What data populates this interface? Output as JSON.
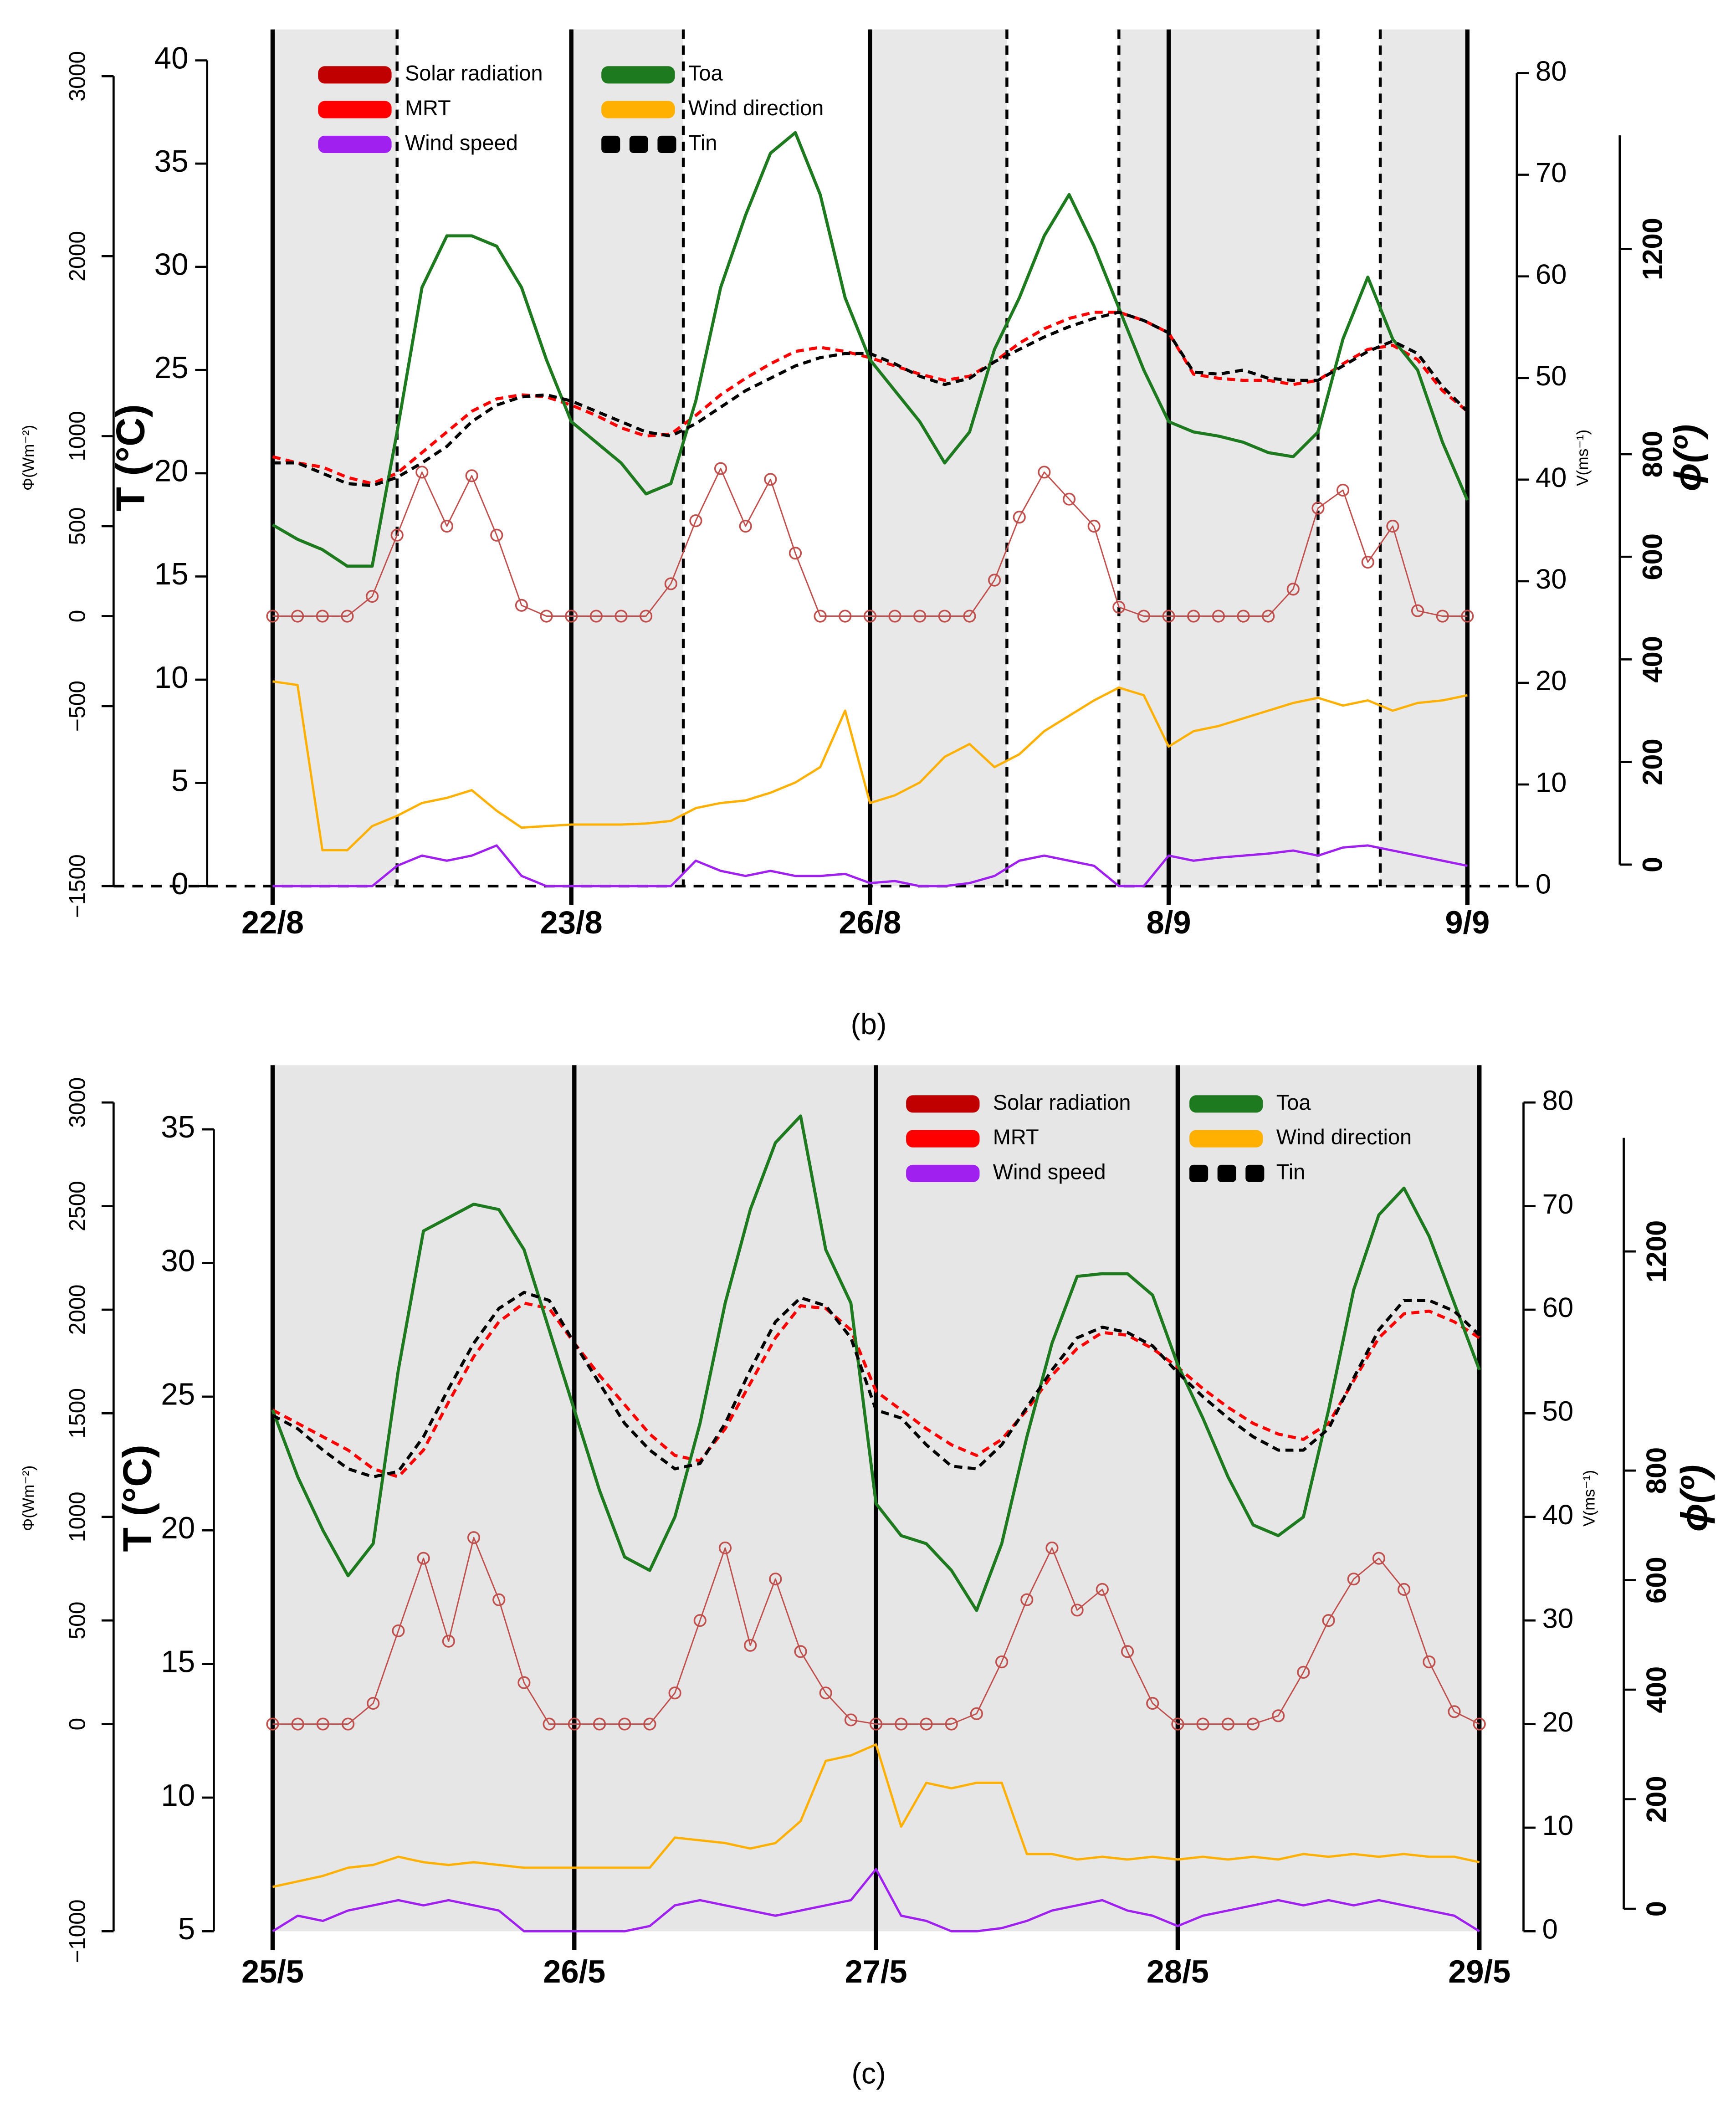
{
  "chart_data": [
    {
      "type": "line",
      "caption": "(b)",
      "x": [
        0,
        2,
        4,
        6,
        8,
        10,
        12,
        14,
        16,
        18,
        20,
        22,
        24,
        26,
        28,
        30,
        32,
        34,
        36,
        38,
        40,
        42,
        44,
        46,
        48,
        50,
        52,
        54,
        56,
        58,
        60,
        62,
        64,
        66,
        68,
        70,
        72,
        74,
        76,
        78,
        80,
        82,
        84,
        86,
        88,
        90,
        92,
        94,
        96
      ],
      "xlim": [
        0,
        96
      ],
      "xticks": [
        {
          "value": 0,
          "label": "22/8"
        },
        {
          "value": 24,
          "label": "23/8"
        },
        {
          "value": 48,
          "label": "26/8"
        },
        {
          "value": 72,
          "label": "8/9"
        },
        {
          "value": 96,
          "label": "9/9"
        }
      ],
      "ylabel": "T (°C)",
      "ylim": [
        0,
        41.5
      ],
      "yticks": [
        0,
        5,
        10,
        15,
        20,
        25,
        30,
        35,
        40
      ],
      "y2label": "V(ms⁻¹)",
      "y2lim": [
        0,
        84.3
      ],
      "y2ticks": [
        0,
        10,
        20,
        30,
        40,
        50,
        60,
        70,
        80
      ],
      "y3label": "Φ(Wm⁻²)",
      "y3lim": [
        -1500,
        3260
      ],
      "y3ticks": [
        {
          "value": -1500,
          "label": "−1500"
        },
        {
          "value": -500,
          "label": "−500"
        },
        0,
        500,
        1000,
        2000,
        3000
      ],
      "y4label": "ϕ(º)",
      "y4lim": [
        -42,
        1628
      ],
      "y4ticks": [
        0,
        200,
        400,
        600,
        800,
        1200
      ],
      "night_periods": [
        [
          0,
          10
        ],
        [
          24,
          33
        ],
        [
          48,
          59
        ],
        [
          68,
          84
        ],
        [
          89,
          96
        ]
      ],
      "night_color": "#e8e8e8",
      "baseline_dashed": true,
      "legend": "upper left",
      "series": [
        {
          "name": "Solar radiation",
          "color": "#c0504d",
          "legend_color": "#c00000",
          "axis": "y3",
          "marker": "circle",
          "values": [
            0,
            0,
            0,
            0,
            110,
            450,
            800,
            500,
            780,
            450,
            60,
            0,
            0,
            0,
            0,
            0,
            180,
            530,
            820,
            500,
            760,
            350,
            0,
            0,
            0,
            0,
            0,
            0,
            0,
            200,
            550,
            800,
            650,
            500,
            50,
            0,
            0,
            0,
            0,
            0,
            0,
            150,
            600,
            700,
            300,
            500,
            30,
            0,
            0
          ]
        },
        {
          "name": "MRT",
          "color": "#ff0000",
          "axis": "y",
          "linestyle": "dashed",
          "values": [
            20.8,
            20.5,
            20.3,
            19.8,
            19.5,
            20,
            21,
            22,
            23,
            23.6,
            23.8,
            23.7,
            23.3,
            22.8,
            22.2,
            21.8,
            21.9,
            22.8,
            23.8,
            24.6,
            25.3,
            25.9,
            26.1,
            25.9,
            25.6,
            25.2,
            24.8,
            24.5,
            24.7,
            25.4,
            26.3,
            27,
            27.5,
            27.8,
            27.8,
            27.4,
            26.8,
            24.8,
            24.6,
            24.5,
            24.5,
            24.3,
            24.5,
            25.3,
            26,
            26.2,
            25.5,
            24,
            23
          ]
        },
        {
          "name": "Wind speed",
          "color": "#a020f0",
          "axis": "y2",
          "linestyle": "solid",
          "values": [
            0,
            0,
            0,
            0,
            0,
            2,
            3,
            2.5,
            3,
            4,
            1,
            0,
            0,
            0,
            0,
            0,
            0,
            2.5,
            1.5,
            1,
            1.5,
            1,
            1,
            1.2,
            0.3,
            0.5,
            0,
            0,
            0.3,
            1,
            2.5,
            3,
            2.5,
            2,
            0,
            0,
            3,
            2.5,
            2.8,
            3,
            3.2,
            3.5,
            3,
            3.8,
            4,
            3.5,
            3,
            2.5,
            2
          ]
        },
        {
          "name": "Toa",
          "color": "#1e7a1e",
          "axis": "y",
          "linestyle": "solid",
          "values": [
            17.5,
            16.8,
            16.3,
            15.5,
            15.5,
            22,
            29,
            31.5,
            31.5,
            31,
            29,
            25.5,
            22.5,
            21.5,
            20.5,
            19,
            19.5,
            23.5,
            29,
            32.5,
            35.5,
            36.5,
            33.5,
            28.5,
            25.5,
            24,
            22.5,
            20.5,
            22,
            26,
            28.5,
            31.5,
            33.5,
            31,
            28,
            25,
            22.5,
            22,
            21.8,
            21.5,
            21,
            20.8,
            22,
            26.5,
            29.5,
            26.5,
            25,
            21.5,
            18.7
          ]
        },
        {
          "name": "Wind direction",
          "color": "#ffb000",
          "axis": "y4",
          "linestyle": "solid",
          "values": [
            357,
            350,
            28,
            28,
            75,
            95,
            120,
            130,
            145,
            105,
            72,
            75,
            78,
            78,
            78,
            80,
            85,
            110,
            120,
            125,
            140,
            160,
            190,
            300,
            120,
            135,
            160,
            210,
            235,
            190,
            215,
            260,
            290,
            320,
            345,
            330,
            230,
            260,
            270,
            285,
            300,
            315,
            325,
            310,
            320,
            300,
            315,
            320,
            330
          ]
        },
        {
          "name": "Tin",
          "color": "#000000",
          "axis": "y",
          "linestyle": "dashed",
          "values": [
            20.5,
            20.5,
            20,
            19.5,
            19.4,
            19.8,
            20.5,
            21.3,
            22.5,
            23.3,
            23.7,
            23.8,
            23.5,
            23,
            22.5,
            22,
            21.8,
            22.4,
            23.2,
            24,
            24.6,
            25.2,
            25.6,
            25.8,
            25.8,
            25.3,
            24.7,
            24.3,
            24.6,
            25.4,
            26,
            26.6,
            27.1,
            27.5,
            27.8,
            27.4,
            26.8,
            24.9,
            24.8,
            25,
            24.6,
            24.5,
            24.5,
            25.2,
            25.9,
            26.4,
            25.8,
            24.2,
            23
          ]
        }
      ]
    },
    {
      "type": "line",
      "caption": "(c)",
      "x": [
        0,
        2,
        4,
        6,
        8,
        10,
        12,
        14,
        16,
        18,
        20,
        22,
        24,
        26,
        28,
        30,
        32,
        34,
        36,
        38,
        40,
        42,
        44,
        46,
        48,
        50,
        52,
        54,
        56,
        58,
        60,
        62,
        64,
        66,
        68,
        70,
        72,
        74,
        76,
        78,
        80,
        82,
        84,
        86,
        88,
        90,
        92,
        94,
        96
      ],
      "xlim": [
        0,
        96
      ],
      "xticks": [
        {
          "value": 0,
          "label": "25/5"
        },
        {
          "value": 24,
          "label": "26/5"
        },
        {
          "value": 48,
          "label": "27/5"
        },
        {
          "value": 72,
          "label": "28/5"
        },
        {
          "value": 96,
          "label": "29/5"
        }
      ],
      "ylabel": "T (°C)",
      "ylim": [
        5,
        37.4
      ],
      "yticks": [
        5,
        10,
        15,
        20,
        25,
        30,
        35
      ],
      "y2label": "V(ms⁻¹)",
      "y2lim": [
        0,
        83.6
      ],
      "y2ticks": [
        0,
        10,
        20,
        30,
        40,
        50,
        60,
        70,
        80
      ],
      "y3label": "Φ(Wm⁻²)",
      "y3lim": [
        -1000,
        3180
      ],
      "y3ticks": [
        {
          "value": -1000,
          "label": "−1000"
        },
        0,
        500,
        1000,
        1500,
        2000,
        2500,
        3000
      ],
      "y4label": "ϕ(º)",
      "y4lim": [
        -41,
        1540
      ],
      "y4ticks": [
        0,
        200,
        400,
        600,
        800,
        1200
      ],
      "night_periods": [
        [
          0,
          96
        ]
      ],
      "night_color": "#e6e6e6",
      "baseline_dashed": false,
      "legend": "upper right",
      "series": [
        {
          "name": "Solar radiation",
          "color": "#c0504d",
          "legend_color": "#c00000",
          "axis": "y3",
          "marker": "circle",
          "values": [
            0,
            0,
            0,
            0,
            100,
            450,
            800,
            400,
            900,
            600,
            200,
            0,
            0,
            0,
            0,
            0,
            150,
            500,
            850,
            380,
            700,
            350,
            150,
            20,
            0,
            0,
            0,
            0,
            50,
            300,
            600,
            850,
            550,
            650,
            350,
            100,
            0,
            0,
            0,
            0,
            40,
            250,
            500,
            700,
            800,
            650,
            300,
            60,
            0
          ]
        },
        {
          "name": "MRT",
          "color": "#ff0000",
          "axis": "y",
          "linestyle": "dashed",
          "values": [
            24.5,
            24,
            23.5,
            23,
            22.3,
            22,
            23,
            24.8,
            26.5,
            27.8,
            28.5,
            28.3,
            27,
            25.8,
            24.7,
            23.6,
            22.8,
            22.6,
            23.8,
            25.5,
            27.2,
            28.4,
            28.3,
            27.5,
            25.2,
            24.5,
            23.8,
            23.2,
            22.8,
            23.4,
            24.5,
            25.8,
            26.8,
            27.4,
            27.3,
            26.8,
            26.1,
            25.3,
            24.6,
            24,
            23.6,
            23.4,
            24,
            25.6,
            27.2,
            28.1,
            28.2,
            27.8,
            27.2
          ]
        },
        {
          "name": "Wind speed",
          "color": "#a020f0",
          "axis": "y2",
          "linestyle": "solid",
          "values": [
            0,
            1.5,
            1,
            2,
            2.5,
            3,
            2.5,
            3,
            2.5,
            2,
            0,
            0,
            0,
            0,
            0,
            0.5,
            2.5,
            3,
            2.5,
            2,
            1.5,
            2,
            2.5,
            3,
            6,
            1.5,
            1,
            0,
            0,
            0.3,
            1,
            2,
            2.5,
            3,
            2,
            1.5,
            0.5,
            1.5,
            2,
            2.5,
            3,
            2.5,
            3,
            2.5,
            3,
            2.5,
            2,
            1.5,
            0
          ]
        },
        {
          "name": "Toa",
          "color": "#1e7a1e",
          "axis": "y",
          "linestyle": "solid",
          "values": [
            24.5,
            22,
            20,
            18.3,
            19.5,
            26,
            31.2,
            31.7,
            32.2,
            32,
            30.5,
            27.5,
            24.5,
            21.5,
            19,
            18.5,
            20.5,
            24,
            28.5,
            32,
            34.5,
            35.5,
            30.5,
            28.5,
            21,
            19.8,
            19.5,
            18.5,
            17,
            19.5,
            23.5,
            27,
            29.5,
            29.6,
            29.6,
            28.8,
            26.2,
            24.2,
            22,
            20.2,
            19.8,
            20.5,
            24.5,
            29,
            31.8,
            32.8,
            31,
            28.5,
            26
          ]
        },
        {
          "name": "Wind direction",
          "color": "#ffb000",
          "axis": "y4",
          "linestyle": "solid",
          "values": [
            40,
            50,
            60,
            75,
            80,
            95,
            85,
            80,
            85,
            80,
            75,
            75,
            75,
            75,
            75,
            75,
            130,
            125,
            120,
            110,
            120,
            160,
            270,
            280,
            300,
            150,
            230,
            220,
            230,
            230,
            100,
            100,
            90,
            95,
            90,
            95,
            90,
            95,
            90,
            95,
            90,
            100,
            95,
            100,
            95,
            100,
            95,
            95,
            85
          ]
        },
        {
          "name": "Tin",
          "color": "#000000",
          "axis": "y",
          "linestyle": "dashed",
          "values": [
            24.3,
            23.8,
            23,
            22.3,
            22,
            22.2,
            23.5,
            25.3,
            27,
            28.3,
            28.9,
            28.6,
            27,
            25.5,
            24,
            23,
            22.3,
            22.5,
            24,
            26,
            27.8,
            28.7,
            28.4,
            27.2,
            24.5,
            24.2,
            23.2,
            22.4,
            22.3,
            23.2,
            24.6,
            26,
            27.2,
            27.6,
            27.4,
            26.9,
            25.9,
            25,
            24.2,
            23.5,
            23,
            23,
            23.8,
            25.7,
            27.5,
            28.6,
            28.6,
            28.2,
            27.3
          ]
        }
      ]
    }
  ]
}
